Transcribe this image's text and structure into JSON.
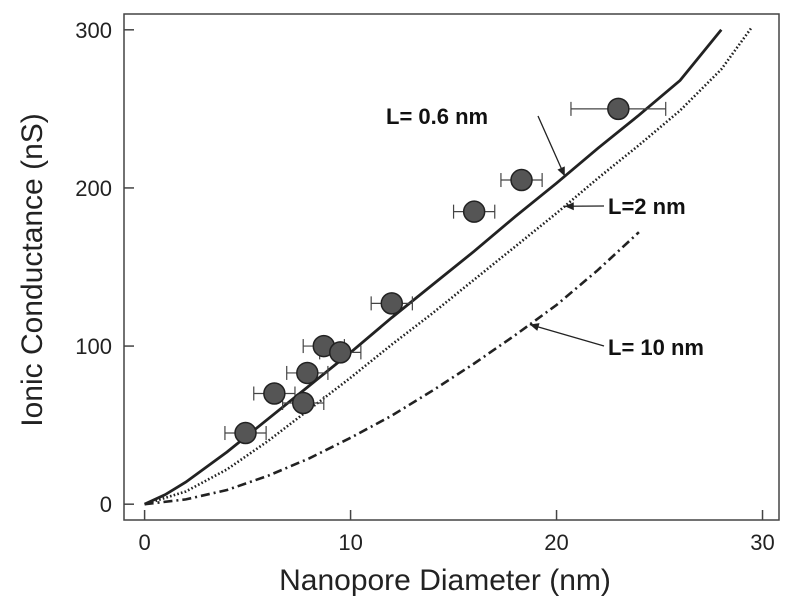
{
  "chart_data": {
    "type": "scatter",
    "xlabel": "Nanopore Diameter  (nm)",
    "ylabel": "Ionic Conductance (nS)",
    "xlim": [
      -1,
      30.8
    ],
    "ylim": [
      -10,
      310
    ],
    "xticks": [
      0,
      10,
      20,
      30
    ],
    "yticks": [
      0,
      100,
      200,
      300
    ],
    "grid": false,
    "legend": "none",
    "points": [
      {
        "x": 4.9,
        "y": 45,
        "xerr": 1.0
      },
      {
        "x": 6.3,
        "y": 70,
        "xerr": 1.0
      },
      {
        "x": 7.7,
        "y": 64,
        "xerr": 1.0
      },
      {
        "x": 7.9,
        "y": 83,
        "xerr": 1.0
      },
      {
        "x": 8.7,
        "y": 100,
        "xerr": 1.0
      },
      {
        "x": 9.5,
        "y": 96,
        "xerr": 1.0
      },
      {
        "x": 12.0,
        "y": 127,
        "xerr": 1.0
      },
      {
        "x": 16.0,
        "y": 185,
        "xerr": 1.0
      },
      {
        "x": 18.3,
        "y": 205,
        "xerr": 1.0
      },
      {
        "x": 23.0,
        "y": 250,
        "xerr": 2.3
      }
    ],
    "series": [
      {
        "name": "L= 0.6 nm",
        "style": "solid",
        "x": [
          0,
          1,
          2,
          4,
          6,
          8,
          10,
          12,
          14,
          16,
          18,
          20,
          22,
          24,
          26,
          28
        ],
        "y": [
          0,
          6,
          14,
          33,
          54,
          75,
          96,
          118,
          139,
          160,
          182,
          203,
          225,
          246,
          268,
          300
        ]
      },
      {
        "name": "L=2 nm",
        "style": "dotted",
        "x": [
          0,
          2,
          4,
          6,
          8,
          10,
          12,
          14,
          16,
          18,
          20,
          22,
          24,
          26,
          28,
          29.5
        ],
        "y": [
          0,
          8,
          22,
          40,
          60,
          80,
          101,
          121,
          142,
          163,
          184,
          206,
          227,
          249,
          275,
          302
        ]
      },
      {
        "name": "L= 10 nm",
        "style": "dashdot",
        "x": [
          0,
          2,
          4,
          6,
          8,
          10,
          12,
          14,
          16,
          18,
          20,
          22,
          24
        ],
        "y": [
          0,
          3,
          9,
          18,
          29,
          42,
          56,
          72,
          89,
          107,
          126,
          148,
          172
        ]
      }
    ],
    "annotations": [
      {
        "text": "L= 0.6 nm",
        "target_series": 0,
        "target_x": 20.4
      },
      {
        "text": "L=2 nm",
        "target_series": 1,
        "target_x": 20.4
      },
      {
        "text": "L= 10 nm",
        "target_series": 2,
        "target_x": 18.7
      }
    ]
  }
}
